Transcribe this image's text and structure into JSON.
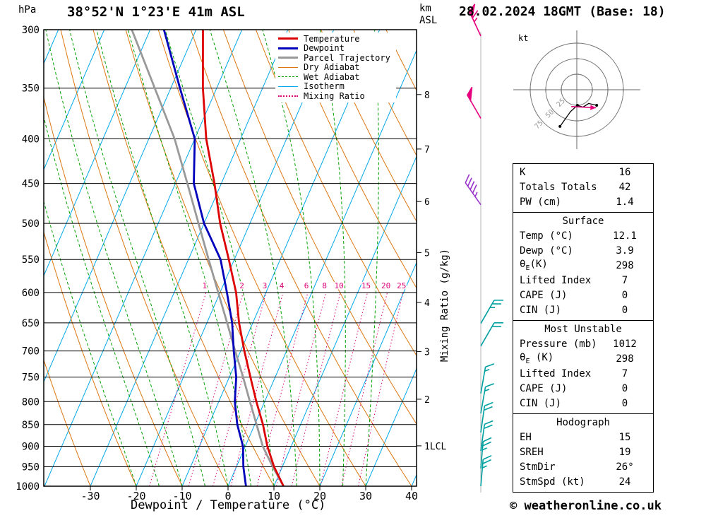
{
  "header": {
    "pressure_unit": "hPa",
    "station_title": "38°52'N 1°23'E 41m ASL",
    "datetime_title": "28.02.2024 18GMT (Base: 18)",
    "km_unit_line1": "km",
    "km_unit_line2": "ASL"
  },
  "legend": {
    "items": [
      {
        "label": "Temperature",
        "color": "#dd0000",
        "weight": 3,
        "style": "solid"
      },
      {
        "label": "Dewpoint",
        "color": "#0000bb",
        "weight": 3,
        "style": "solid"
      },
      {
        "label": "Parcel Trajectory",
        "color": "#999999",
        "weight": 3,
        "style": "solid"
      },
      {
        "label": "Dry Adiabat",
        "color": "#dd7711",
        "weight": 1,
        "style": "solid"
      },
      {
        "label": "Wet Adiabat",
        "color": "#00a000",
        "weight": 1,
        "style": "dashed"
      },
      {
        "label": "Isotherm",
        "color": "#00a8e8",
        "weight": 1,
        "style": "solid"
      },
      {
        "label": "Mixing Ratio",
        "color": "#dd0077",
        "weight": 2,
        "style": "dotted"
      }
    ]
  },
  "axes": {
    "pressure_ticks": [
      300,
      350,
      400,
      450,
      500,
      550,
      600,
      650,
      700,
      750,
      800,
      850,
      900,
      950,
      1000
    ],
    "temp_ticks": [
      -30,
      -20,
      -10,
      0,
      10,
      20,
      30,
      40
    ],
    "km_ticks": [
      {
        "km": "8",
        "p": 356
      },
      {
        "km": "7",
        "p": 411
      },
      {
        "km": "6",
        "p": 472
      },
      {
        "km": "5",
        "p": 540
      },
      {
        "km": "4",
        "p": 616
      },
      {
        "km": "3",
        "p": 701
      },
      {
        "km": "2",
        "p": 795
      },
      {
        "km": "1",
        "p": 899,
        "suffix": "LCL"
      }
    ],
    "xlabel": "Dewpoint / Temperature (°C)",
    "right_axis_label": "Mixing Ratio (g/kg)",
    "mixing_ratio_values": [
      1,
      2,
      3,
      4,
      6,
      8,
      10,
      15,
      20,
      25
    ]
  },
  "background": {
    "isotherm_range": [
      -80,
      40
    ],
    "isotherm_step": 10,
    "dry_adiabat_range": [
      -40,
      110
    ],
    "dry_adiabat_step": 10,
    "wet_adiabat_range": [
      -20,
      30
    ],
    "wet_adiabat_step": 5,
    "colors": {
      "isotherm": "#00a8e8",
      "dry_adiabat": "#dd7711",
      "wet_adiabat": "#00a000",
      "mixing_ratio": "#dd0077",
      "pressure_line": "#000000"
    }
  },
  "chart_data": {
    "type": "line",
    "title": "Skew-T log-P sounding 38°52'N 1°23'E 41m ASL 28.02.2024 18GMT",
    "xlabel": "Dewpoint / Temperature (°C)",
    "ylabel": "Pressure (hPa)",
    "xlim": [
      -40,
      41
    ],
    "pressure_range": [
      300,
      1000
    ],
    "series": [
      {
        "name": "Temperature",
        "color": "#dd0000",
        "pressure": [
          1000,
          950,
          900,
          850,
          800,
          750,
          700,
          650,
          600,
          550,
          500,
          450,
          400,
          350,
          300
        ],
        "temp": [
          12.1,
          8.2,
          4.8,
          1.8,
          -1.8,
          -5.4,
          -9.2,
          -13.0,
          -16.5,
          -21.2,
          -26.5,
          -31.5,
          -37.5,
          -43.0,
          -48.5
        ]
      },
      {
        "name": "Dewpoint",
        "color": "#0000bb",
        "pressure": [
          1000,
          950,
          900,
          850,
          800,
          750,
          700,
          650,
          600,
          550,
          500,
          450,
          400,
          350,
          300
        ],
        "temp": [
          3.9,
          1.5,
          -0.5,
          -3.8,
          -6.5,
          -8.5,
          -11.5,
          -14.5,
          -18.5,
          -23.0,
          -30.0,
          -36.0,
          -40.0,
          -48.0,
          -57.0
        ]
      },
      {
        "name": "Parcel Trajectory",
        "color": "#999999",
        "pressure": [
          1000,
          950,
          900,
          850,
          800,
          750,
          700,
          650,
          600,
          550,
          500,
          450,
          400,
          350,
          300
        ],
        "temp": [
          12.1,
          7.9,
          3.8,
          0.4,
          -3.2,
          -7.0,
          -11.2,
          -15.6,
          -20.4,
          -25.6,
          -31.2,
          -37.4,
          -44.4,
          -53.5,
          -64.0
        ]
      }
    ]
  },
  "hodograph": {
    "unit_label": "kt",
    "ring_radii_kt": [
      25,
      50,
      75
    ],
    "trace_kt": [
      [
        32,
        -25
      ],
      [
        19,
        -22
      ],
      [
        10,
        -28
      ],
      [
        1,
        -25
      ],
      [
        -10,
        -35
      ],
      [
        -27,
        -59
      ]
    ],
    "storm_arrow_kt": [
      [
        -9,
        -27
      ],
      [
        31,
        -29
      ]
    ],
    "storm_dir_deg": 26,
    "storm_speed_kt": 24
  },
  "wind_barbs": {
    "levels": [
      {
        "pressure": 305,
        "speed_kt": 65,
        "angle": -25,
        "color": "#e6007e"
      },
      {
        "pressure": 379,
        "speed_kt": 50,
        "angle": -30,
        "color": "#e6007e"
      },
      {
        "pressure": 476,
        "speed_kt": 45,
        "angle": -35,
        "color": "#9933cc"
      },
      {
        "pressure": 651,
        "speed_kt": 25,
        "angle": 30,
        "color": "#00a0a0"
      },
      {
        "pressure": 691,
        "speed_kt": 20,
        "angle": 30,
        "color": "#00a0a0"
      },
      {
        "pressure": 783,
        "speed_kt": 15,
        "angle": 10,
        "color": "#00a0a0"
      },
      {
        "pressure": 825,
        "speed_kt": 15,
        "angle": 10,
        "color": "#00a0a0"
      },
      {
        "pressure": 868,
        "speed_kt": 20,
        "angle": 8,
        "color": "#00a0a0"
      },
      {
        "pressure": 911,
        "speed_kt": 20,
        "angle": 8,
        "color": "#00a0a0"
      },
      {
        "pressure": 954,
        "speed_kt": 25,
        "angle": 5,
        "color": "#00a0a0"
      },
      {
        "pressure": 1000,
        "speed_kt": 25,
        "angle": 5,
        "color": "#00a0a0"
      }
    ]
  },
  "table": {
    "sections": [
      {
        "header": null,
        "rows": [
          [
            "K",
            "16"
          ],
          [
            "Totals Totals",
            "42"
          ],
          [
            "PW (cm)",
            "1.4"
          ]
        ]
      },
      {
        "header": "Surface",
        "rows": [
          [
            "Temp (°C)",
            "12.1"
          ],
          [
            "Dewp (°C)",
            "3.9"
          ],
          [
            "θE(K)",
            "298"
          ],
          [
            "Lifted Index",
            "7"
          ],
          [
            "CAPE (J)",
            "0"
          ],
          [
            "CIN (J)",
            "0"
          ]
        ]
      },
      {
        "header": "Most Unstable",
        "rows": [
          [
            "Pressure (mb)",
            "1012"
          ],
          [
            "θE (K)",
            "298"
          ],
          [
            "Lifted Index",
            "7"
          ],
          [
            "CAPE (J)",
            "0"
          ],
          [
            "CIN (J)",
            "0"
          ]
        ]
      },
      {
        "header": "Hodograph",
        "rows": [
          [
            "EH",
            "15"
          ],
          [
            "SREH",
            "19"
          ],
          [
            "StmDir",
            "26°"
          ],
          [
            "StmSpd (kt)",
            "24"
          ]
        ]
      }
    ]
  },
  "footer": {
    "copyright": "© weatheronline.co.uk"
  }
}
